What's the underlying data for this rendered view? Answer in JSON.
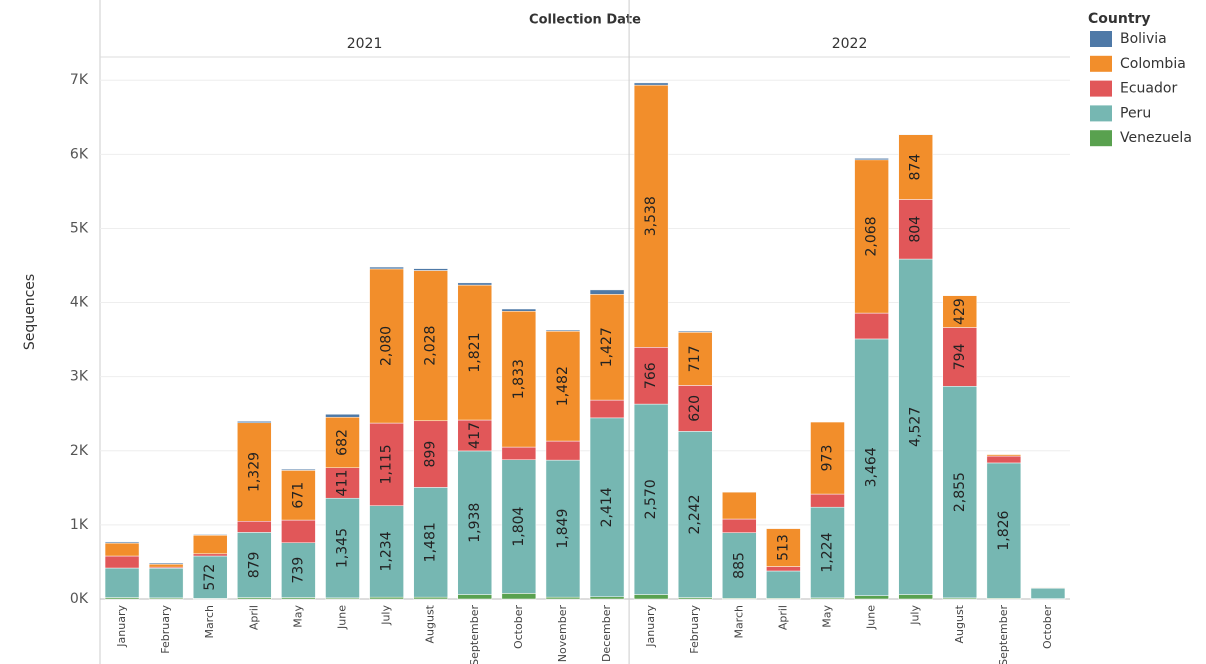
{
  "chart_data": {
    "type": "stacked-bar",
    "title": "Collection Date",
    "y_label": "Sequences",
    "legend_title": "Country",
    "groups": [
      {
        "name": "2021",
        "categories": [
          "January",
          "February",
          "March",
          "April",
          "May",
          "June",
          "July",
          "August",
          "September",
          "October",
          "November",
          "December"
        ]
      },
      {
        "name": "2022",
        "categories": [
          "January",
          "February",
          "March",
          "April",
          "May",
          "June",
          "July",
          "August",
          "September",
          "October"
        ]
      }
    ],
    "ylim": [
      0,
      7300
    ],
    "yticks": [
      {
        "value": 0,
        "label": "0K"
      },
      {
        "value": 1000,
        "label": "1K"
      },
      {
        "value": 2000,
        "label": "2K"
      },
      {
        "value": 3000,
        "label": "3K"
      },
      {
        "value": 4000,
        "label": "4K"
      },
      {
        "value": 5000,
        "label": "5K"
      },
      {
        "value": 6000,
        "label": "6K"
      },
      {
        "value": 7000,
        "label": "7K"
      }
    ],
    "grid": true,
    "series": [
      {
        "name": "Bolivia",
        "color": "#4e79a7",
        "values": [
          15,
          15,
          10,
          20,
          15,
          40,
          25,
          25,
          30,
          30,
          15,
          60,
          30,
          15,
          5,
          5,
          5,
          20,
          5,
          0,
          0,
          0
        ],
        "value_labels": [
          null,
          null,
          null,
          null,
          null,
          null,
          null,
          null,
          null,
          null,
          null,
          null,
          null,
          null,
          null,
          null,
          null,
          null,
          null,
          null,
          null,
          null
        ]
      },
      {
        "name": "Colombia",
        "color": "#f28e2b",
        "values": [
          175,
          40,
          250,
          1329,
          671,
          682,
          2080,
          2028,
          1821,
          1833,
          1482,
          1427,
          3538,
          717,
          364,
          513,
          973,
          2068,
          874,
          429,
          20,
          5
        ],
        "value_labels": [
          null,
          null,
          null,
          "1,329",
          "671",
          "682",
          "2,080",
          "2,028",
          "1,821",
          "1,833",
          "1,482",
          "1,427",
          "3,538",
          "717",
          null,
          "513",
          "973",
          "2,068",
          "874",
          "429",
          null,
          null
        ]
      },
      {
        "name": "Ecuador",
        "color": "#e15759",
        "values": [
          162,
          15,
          30,
          150,
          306,
          411,
          1115,
          899,
          417,
          171,
          257,
          240,
          766,
          620,
          184,
          60,
          177,
          349,
          804,
          794,
          93,
          8
        ],
        "value_labels": [
          null,
          null,
          null,
          null,
          null,
          "411",
          "1,115",
          "899",
          "417",
          null,
          null,
          null,
          "766",
          "620",
          null,
          null,
          null,
          null,
          "804",
          "794",
          null,
          null
        ]
      },
      {
        "name": "Peru",
        "color": "#76b7b2",
        "values": [
          398,
          400,
          572,
          879,
          739,
          1345,
          1234,
          1481,
          1938,
          1804,
          1849,
          2414,
          2570,
          2242,
          885,
          368,
          1224,
          3464,
          4527,
          2855,
          1826,
          140
        ],
        "value_labels": [
          null,
          null,
          "572",
          "879",
          "739",
          "1,345",
          "1,234",
          "1,481",
          "1,938",
          "1,804",
          "1,849",
          "2,414",
          "2,570",
          "2,242",
          "885",
          null,
          "1,224",
          "3,464",
          "4,527",
          "2,855",
          "1,826",
          null
        ]
      },
      {
        "name": "Venezuela",
        "color": "#59a14f",
        "values": [
          20,
          15,
          8,
          20,
          20,
          15,
          25,
          25,
          60,
          75,
          25,
          30,
          60,
          20,
          10,
          10,
          15,
          45,
          60,
          15,
          10,
          5
        ],
        "value_labels": [
          null,
          null,
          null,
          null,
          null,
          null,
          null,
          null,
          null,
          null,
          null,
          null,
          null,
          null,
          null,
          null,
          null,
          null,
          null,
          null,
          null,
          null
        ]
      }
    ]
  }
}
